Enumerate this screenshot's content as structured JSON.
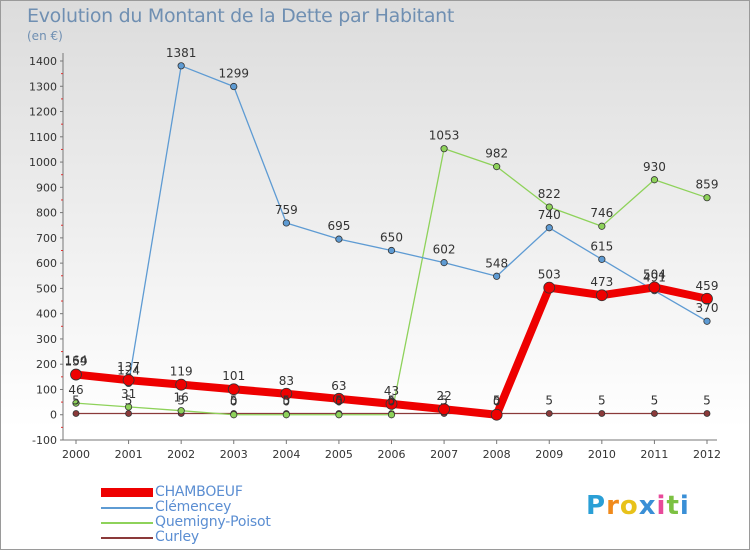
{
  "header": {
    "title": "Evolution du Montant de la Dette par Habitant",
    "subtitle": "(en €)"
  },
  "logo": {
    "letters": [
      "P",
      "r",
      "o",
      "x",
      "i",
      "t",
      "i"
    ],
    "colors": [
      "#2a9fd6",
      "#f08a1c",
      "#e8c21a",
      "#3a8fd6",
      "#e84a9a",
      "#7cc142",
      "#3a8fd6"
    ]
  },
  "chart_data": {
    "type": "line",
    "title": "Evolution du Montant de la Dette par Habitant",
    "subtitle": "(en €)",
    "x": [
      "2000",
      "2001",
      "2002",
      "2003",
      "2004",
      "2005",
      "2006",
      "2007",
      "2008",
      "2009",
      "2010",
      "2011",
      "2012"
    ],
    "ylim": [
      -100,
      1400
    ],
    "yticks": [
      -100,
      0,
      100,
      200,
      300,
      400,
      500,
      600,
      700,
      800,
      900,
      1000,
      1100,
      1200,
      1300,
      1400
    ],
    "grid": false,
    "legend_position": "bottom-left",
    "series": [
      {
        "name": "CHAMBOEUF",
        "color": "#ee0000",
        "values": [
          159,
          137,
          119,
          101,
          83,
          63,
          43,
          22,
          0,
          503,
          473,
          504,
          459
        ]
      },
      {
        "name": "Clémencey",
        "color": "#5e9bd3",
        "values": [
          164,
          124,
          1381,
          1299,
          759,
          695,
          650,
          602,
          548,
          740,
          615,
          491,
          370
        ]
      },
      {
        "name": "Quemigny-Poisot",
        "color": "#8ed25a",
        "values": [
          46,
          31,
          16,
          0,
          0,
          0,
          0,
          1053,
          982,
          822,
          746,
          930,
          859
        ]
      },
      {
        "name": "Curley",
        "color": "#8b3a3a",
        "values": [
          5,
          5,
          5,
          5,
          5,
          5,
          5,
          5,
          5,
          5,
          5,
          5,
          5
        ]
      }
    ],
    "data_labels": [
      {
        "series": "CHAMBOEUF",
        "labels": [
          "159",
          "137",
          "119",
          "101",
          "83",
          "63",
          "43",
          "22",
          "0",
          "503",
          "473",
          "504",
          "459"
        ]
      },
      {
        "series": "Clémencey",
        "labels": [
          "164",
          "124",
          "1381",
          "1299",
          "759",
          "695",
          "650",
          "602",
          "548",
          "740",
          "615",
          "491",
          "370"
        ]
      },
      {
        "series": "Quemigny-Poisot",
        "labels": [
          "46",
          "31",
          "16",
          "0",
          "0",
          "0",
          "0",
          "1053",
          "982",
          "822",
          "746",
          "930",
          "859"
        ]
      },
      {
        "series": "Curley",
        "labels": [
          "5",
          "5",
          "5",
          "5",
          "5",
          "5",
          "5",
          "5",
          "5",
          "5",
          "5",
          "5",
          "5"
        ]
      }
    ]
  }
}
